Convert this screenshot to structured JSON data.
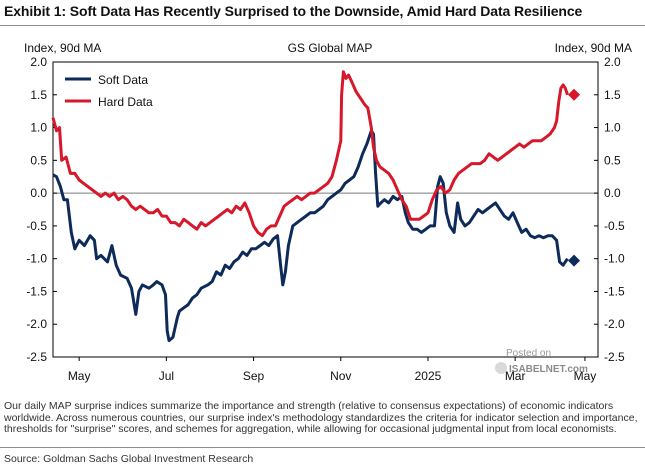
{
  "title": "Exhibit 1: Soft Data Has Recently Surprised to the Downside, Amid Hard Data Resilience",
  "footnote": "Our daily MAP surprise indices summarize the importance and strength (relative to consensus expectations) of economic indicators worldwide. Across numerous countries, our surprise index's methodology standardizes the criteria for indicator selection and importance, thresholds for \"surprise\" scores, and schemes for aggregation, while allowing for occasional judgmental input from local economists.",
  "source": "Source: Goldman Sachs Global Investment Research",
  "watermark": {
    "line1": "Posted on",
    "line2": "ISABELNET.com"
  },
  "colors": {
    "soft": "#0d2b5a",
    "hard": "#d7182a"
  },
  "chart_data": {
    "type": "line",
    "title": "GS Global MAP",
    "ylabel_left": "Index, 90d MA",
    "ylabel_right": "Index, 90d MA",
    "ylim": [
      -2.5,
      2.0
    ],
    "yticks": [
      "2.0",
      "1.5",
      "1.0",
      "0.5",
      "0.0",
      "-0.5",
      "-1.0",
      "-1.5",
      "-2.0",
      "-2.5"
    ],
    "xlim": [
      0,
      12.5
    ],
    "xticks": [
      {
        "x": 0.6,
        "label": "May"
      },
      {
        "x": 2.6,
        "label": "Jul"
      },
      {
        "x": 4.6,
        "label": "Sep"
      },
      {
        "x": 6.6,
        "label": "Nov"
      },
      {
        "x": 8.6,
        "label": "2025"
      },
      {
        "x": 10.6,
        "label": "Mar"
      },
      {
        "x": 12.2,
        "label": "May"
      }
    ],
    "legend": {
      "position": "top-left",
      "entries": [
        "Soft Data",
        "Hard Data"
      ]
    },
    "zero_line": true,
    "series": [
      {
        "name": "Soft Data",
        "color": "#0d2b5a",
        "marker": {
          "shape": "diamond",
          "x": 11.95,
          "y": -1.03
        },
        "points": [
          [
            0.0,
            0.28
          ],
          [
            0.08,
            0.25
          ],
          [
            0.17,
            0.1
          ],
          [
            0.25,
            -0.1
          ],
          [
            0.33,
            -0.1
          ],
          [
            0.42,
            -0.6
          ],
          [
            0.5,
            -0.85
          ],
          [
            0.6,
            -0.72
          ],
          [
            0.72,
            -0.8
          ],
          [
            0.85,
            -0.65
          ],
          [
            0.95,
            -0.72
          ],
          [
            1.0,
            -1.0
          ],
          [
            1.1,
            -0.95
          ],
          [
            1.25,
            -1.05
          ],
          [
            1.35,
            -0.8
          ],
          [
            1.45,
            -1.1
          ],
          [
            1.55,
            -1.25
          ],
          [
            1.7,
            -1.3
          ],
          [
            1.8,
            -1.45
          ],
          [
            1.9,
            -1.85
          ],
          [
            1.97,
            -1.5
          ],
          [
            2.05,
            -1.4
          ],
          [
            2.2,
            -1.45
          ],
          [
            2.3,
            -1.4
          ],
          [
            2.38,
            -1.35
          ],
          [
            2.5,
            -1.4
          ],
          [
            2.58,
            -1.55
          ],
          [
            2.62,
            -2.1
          ],
          [
            2.66,
            -2.25
          ],
          [
            2.75,
            -2.2
          ],
          [
            2.85,
            -1.9
          ],
          [
            2.9,
            -1.8
          ],
          [
            3.0,
            -1.75
          ],
          [
            3.1,
            -1.7
          ],
          [
            3.2,
            -1.6
          ],
          [
            3.3,
            -1.55
          ],
          [
            3.4,
            -1.45
          ],
          [
            3.55,
            -1.4
          ],
          [
            3.65,
            -1.35
          ],
          [
            3.75,
            -1.2
          ],
          [
            3.85,
            -1.25
          ],
          [
            3.95,
            -1.1
          ],
          [
            4.05,
            -1.15
          ],
          [
            4.15,
            -1.05
          ],
          [
            4.25,
            -1.0
          ],
          [
            4.35,
            -0.9
          ],
          [
            4.45,
            -0.95
          ],
          [
            4.55,
            -0.85
          ],
          [
            4.65,
            -0.85
          ],
          [
            4.75,
            -0.8
          ],
          [
            4.85,
            -0.75
          ],
          [
            4.95,
            -0.8
          ],
          [
            5.05,
            -0.7
          ],
          [
            5.15,
            -0.65
          ],
          [
            5.22,
            -1.1
          ],
          [
            5.27,
            -1.4
          ],
          [
            5.33,
            -1.2
          ],
          [
            5.4,
            -0.8
          ],
          [
            5.5,
            -0.5
          ],
          [
            5.6,
            -0.45
          ],
          [
            5.7,
            -0.4
          ],
          [
            5.8,
            -0.35
          ],
          [
            5.9,
            -0.3
          ],
          [
            6.0,
            -0.3
          ],
          [
            6.1,
            -0.25
          ],
          [
            6.2,
            -0.2
          ],
          [
            6.3,
            -0.1
          ],
          [
            6.4,
            -0.05
          ],
          [
            6.5,
            0.0
          ],
          [
            6.6,
            0.05
          ],
          [
            6.7,
            0.15
          ],
          [
            6.8,
            0.2
          ],
          [
            6.9,
            0.25
          ],
          [
            7.0,
            0.4
          ],
          [
            7.1,
            0.6
          ],
          [
            7.2,
            0.75
          ],
          [
            7.3,
            0.95
          ],
          [
            7.35,
            0.9
          ],
          [
            7.4,
            0.3
          ],
          [
            7.45,
            -0.2
          ],
          [
            7.52,
            -0.15
          ],
          [
            7.6,
            -0.1
          ],
          [
            7.7,
            -0.15
          ],
          [
            7.8,
            -0.05
          ],
          [
            7.9,
            -0.1
          ],
          [
            8.0,
            -0.05
          ],
          [
            8.08,
            -0.3
          ],
          [
            8.15,
            -0.45
          ],
          [
            8.25,
            -0.55
          ],
          [
            8.35,
            -0.55
          ],
          [
            8.45,
            -0.6
          ],
          [
            8.55,
            -0.55
          ],
          [
            8.65,
            -0.5
          ],
          [
            8.75,
            -0.5
          ],
          [
            8.82,
            0.1
          ],
          [
            8.88,
            0.25
          ],
          [
            8.95,
            0.15
          ],
          [
            9.02,
            -0.3
          ],
          [
            9.1,
            -0.5
          ],
          [
            9.2,
            -0.6
          ],
          [
            9.28,
            -0.15
          ],
          [
            9.35,
            -0.4
          ],
          [
            9.45,
            -0.5
          ],
          [
            9.55,
            -0.45
          ],
          [
            9.65,
            -0.35
          ],
          [
            9.75,
            -0.25
          ],
          [
            9.85,
            -0.3
          ],
          [
            9.95,
            -0.25
          ],
          [
            10.05,
            -0.2
          ],
          [
            10.15,
            -0.15
          ],
          [
            10.25,
            -0.25
          ],
          [
            10.35,
            -0.35
          ],
          [
            10.45,
            -0.4
          ],
          [
            10.55,
            -0.3
          ],
          [
            10.65,
            -0.45
          ],
          [
            10.75,
            -0.6
          ],
          [
            10.85,
            -0.55
          ],
          [
            10.95,
            -0.65
          ],
          [
            11.05,
            -0.68
          ],
          [
            11.15,
            -0.65
          ],
          [
            11.25,
            -0.68
          ],
          [
            11.35,
            -0.65
          ],
          [
            11.45,
            -0.65
          ],
          [
            11.55,
            -0.72
          ],
          [
            11.62,
            -1.05
          ],
          [
            11.7,
            -1.1
          ],
          [
            11.8,
            -1.0
          ]
        ]
      },
      {
        "name": "Hard Data",
        "color": "#d7182a",
        "marker": {
          "shape": "diamond",
          "x": 11.95,
          "y": 1.5
        },
        "points": [
          [
            0.0,
            1.15
          ],
          [
            0.08,
            0.95
          ],
          [
            0.15,
            1.0
          ],
          [
            0.2,
            0.5
          ],
          [
            0.3,
            0.55
          ],
          [
            0.4,
            0.3
          ],
          [
            0.5,
            0.3
          ],
          [
            0.6,
            0.2
          ],
          [
            0.7,
            0.15
          ],
          [
            0.8,
            0.1
          ],
          [
            0.9,
            0.05
          ],
          [
            1.0,
            0.0
          ],
          [
            1.1,
            -0.05
          ],
          [
            1.2,
            0.0
          ],
          [
            1.3,
            -0.05
          ],
          [
            1.4,
            0.0
          ],
          [
            1.5,
            -0.1
          ],
          [
            1.6,
            -0.05
          ],
          [
            1.7,
            -0.1
          ],
          [
            1.8,
            -0.2
          ],
          [
            1.9,
            -0.25
          ],
          [
            2.0,
            -0.2
          ],
          [
            2.1,
            -0.25
          ],
          [
            2.2,
            -0.3
          ],
          [
            2.3,
            -0.3
          ],
          [
            2.4,
            -0.25
          ],
          [
            2.5,
            -0.35
          ],
          [
            2.6,
            -0.35
          ],
          [
            2.7,
            -0.45
          ],
          [
            2.8,
            -0.45
          ],
          [
            2.9,
            -0.5
          ],
          [
            3.0,
            -0.4
          ],
          [
            3.1,
            -0.45
          ],
          [
            3.2,
            -0.5
          ],
          [
            3.3,
            -0.55
          ],
          [
            3.4,
            -0.45
          ],
          [
            3.5,
            -0.5
          ],
          [
            3.6,
            -0.45
          ],
          [
            3.7,
            -0.4
          ],
          [
            3.8,
            -0.35
          ],
          [
            3.9,
            -0.3
          ],
          [
            4.0,
            -0.25
          ],
          [
            4.1,
            -0.3
          ],
          [
            4.2,
            -0.2
          ],
          [
            4.3,
            -0.25
          ],
          [
            4.4,
            -0.15
          ],
          [
            4.5,
            -0.3
          ],
          [
            4.6,
            -0.5
          ],
          [
            4.7,
            -0.6
          ],
          [
            4.8,
            -0.65
          ],
          [
            4.9,
            -0.55
          ],
          [
            5.0,
            -0.5
          ],
          [
            5.1,
            -0.5
          ],
          [
            5.2,
            -0.35
          ],
          [
            5.3,
            -0.2
          ],
          [
            5.4,
            -0.15
          ],
          [
            5.5,
            -0.1
          ],
          [
            5.6,
            -0.05
          ],
          [
            5.7,
            -0.1
          ],
          [
            5.8,
            -0.05
          ],
          [
            5.9,
            0.0
          ],
          [
            6.0,
            0.0
          ],
          [
            6.1,
            0.05
          ],
          [
            6.2,
            0.1
          ],
          [
            6.3,
            0.15
          ],
          [
            6.4,
            0.25
          ],
          [
            6.5,
            0.5
          ],
          [
            6.6,
            0.8
          ],
          [
            6.62,
            1.5
          ],
          [
            6.66,
            1.85
          ],
          [
            6.72,
            1.75
          ],
          [
            6.78,
            1.8
          ],
          [
            6.85,
            1.7
          ],
          [
            6.95,
            1.55
          ],
          [
            7.05,
            1.45
          ],
          [
            7.15,
            1.35
          ],
          [
            7.22,
            1.3
          ],
          [
            7.3,
            1.0
          ],
          [
            7.35,
            0.7
          ],
          [
            7.42,
            0.5
          ],
          [
            7.5,
            0.4
          ],
          [
            7.6,
            0.35
          ],
          [
            7.7,
            0.3
          ],
          [
            7.8,
            0.2
          ],
          [
            7.9,
            0.05
          ],
          [
            8.0,
            -0.1
          ],
          [
            8.1,
            -0.2
          ],
          [
            8.2,
            -0.4
          ],
          [
            8.3,
            -0.4
          ],
          [
            8.4,
            -0.4
          ],
          [
            8.5,
            -0.35
          ],
          [
            8.6,
            -0.3
          ],
          [
            8.7,
            -0.1
          ],
          [
            8.8,
            0.05
          ],
          [
            8.9,
            0.1
          ],
          [
            9.0,
            0.0
          ],
          [
            9.1,
            0.05
          ],
          [
            9.2,
            0.2
          ],
          [
            9.3,
            0.3
          ],
          [
            9.4,
            0.35
          ],
          [
            9.5,
            0.4
          ],
          [
            9.6,
            0.45
          ],
          [
            9.7,
            0.45
          ],
          [
            9.8,
            0.45
          ],
          [
            9.9,
            0.5
          ],
          [
            10.0,
            0.6
          ],
          [
            10.1,
            0.55
          ],
          [
            10.2,
            0.5
          ],
          [
            10.3,
            0.55
          ],
          [
            10.4,
            0.6
          ],
          [
            10.5,
            0.65
          ],
          [
            10.6,
            0.7
          ],
          [
            10.7,
            0.75
          ],
          [
            10.8,
            0.7
          ],
          [
            10.9,
            0.75
          ],
          [
            11.0,
            0.8
          ],
          [
            11.1,
            0.8
          ],
          [
            11.2,
            0.8
          ],
          [
            11.3,
            0.85
          ],
          [
            11.4,
            0.9
          ],
          [
            11.5,
            1.0
          ],
          [
            11.55,
            1.1
          ],
          [
            11.6,
            1.4
          ],
          [
            11.65,
            1.6
          ],
          [
            11.7,
            1.65
          ],
          [
            11.75,
            1.6
          ],
          [
            11.8,
            1.5
          ]
        ]
      }
    ]
  }
}
